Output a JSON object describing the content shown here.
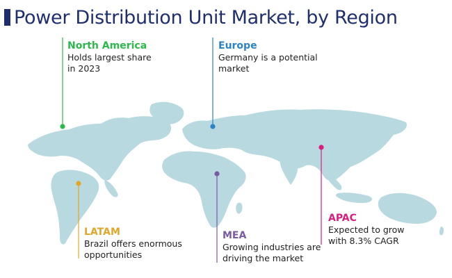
{
  "title": "Power Distribution Unit Market, by Region",
  "colors": {
    "title": "#1f2f6e",
    "land": "#b7d9df",
    "north_america": "#2db84c",
    "europe": "#2a83c4",
    "latam": "#e0a72a",
    "mea": "#7a5aa5",
    "apac": "#d61f7f"
  },
  "regions": {
    "north_america": {
      "name": "North America",
      "line1": "Holds largest share",
      "line2": "in 2023"
    },
    "europe": {
      "name": "Europe",
      "line1": "Germany is a potential",
      "line2": "market"
    },
    "latam": {
      "name": "LATAM",
      "line1": "Brazil offers enormous",
      "line2": "opportunities"
    },
    "mea": {
      "name": "MEA",
      "line1": "Growing industries are",
      "line2": "driving the market"
    },
    "apac": {
      "name": "APAC",
      "line1": "Expected to grow",
      "line2": "with 8.3% CAGR"
    }
  }
}
